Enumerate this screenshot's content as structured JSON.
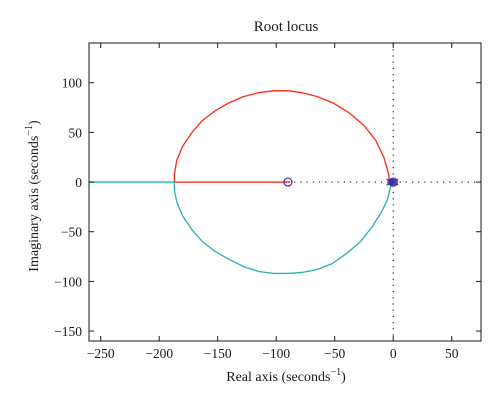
{
  "chart_data": {
    "type": "line",
    "title": "Root locus",
    "xlabel": "Real axis (seconds",
    "xlabel_sup": "−1",
    "xlabel_close": ")",
    "ylabel": "Imaginary axis (seconds",
    "ylabel_sup": "−1",
    "ylabel_close": ")",
    "xlim": [
      -260,
      75
    ],
    "ylim": [
      -160,
      140
    ],
    "xticks": [
      -250,
      -200,
      -150,
      -100,
      -50,
      0,
      50
    ],
    "xtick_labels": [
      "−250",
      "−200",
      "−150",
      "−100",
      "−50",
      "0",
      "50"
    ],
    "yticks": [
      100,
      50,
      0,
      -50,
      -100,
      -150
    ],
    "ytick_labels": [
      "100",
      "50",
      "0",
      "−50",
      "−100",
      "−150"
    ],
    "grid": false,
    "series": [
      {
        "color": "#ff2a10",
        "x": [
          -3,
          -4,
          -8,
          -15,
          -25,
          -38,
          -52,
          -65,
          -78,
          -90,
          -102,
          -115,
          -128,
          -140,
          -152,
          -163,
          -172,
          -180,
          -185,
          -187,
          -187,
          -160,
          -130,
          -100,
          -88
        ],
        "y": [
          0,
          8,
          25,
          42,
          57,
          70,
          80,
          86,
          90,
          92,
          92,
          90,
          86,
          80,
          72,
          62,
          50,
          36,
          22,
          8,
          0,
          0,
          0,
          0,
          0
        ]
      },
      {
        "color": "#2ab0b0",
        "x": [
          -1,
          -3,
          -5,
          -10,
          -18,
          -28,
          -40,
          -52,
          -65,
          -78,
          -90,
          -102,
          -115,
          -128,
          -140,
          -152,
          -163,
          -172,
          -180,
          -185,
          -187,
          -187,
          -200,
          -230,
          -260
        ],
        "y": [
          0,
          -8,
          -18,
          -30,
          -45,
          -60,
          -72,
          -82,
          -88,
          -91,
          -92,
          -92,
          -90,
          -85,
          -78,
          -70,
          -60,
          -48,
          -34,
          -20,
          -8,
          0,
          0,
          0,
          0
        ]
      }
    ],
    "zeros": {
      "x": [
        -90,
        0
      ],
      "y": [
        0,
        0
      ],
      "marker": "o",
      "color": "#3a2aa0"
    },
    "poles_cluster": {
      "x": [
        -3,
        -1.5,
        0,
        1.5
      ],
      "y": [
        0,
        0,
        0,
        0
      ],
      "marker": "x",
      "color": "#3a2aa0"
    },
    "dotted_vertical": {
      "x": 0,
      "color": "#1a1a1a"
    },
    "dotted_horizontal": {
      "x_from": -90,
      "x_to": 75,
      "y": 0,
      "color": "#1a1a1a"
    }
  }
}
